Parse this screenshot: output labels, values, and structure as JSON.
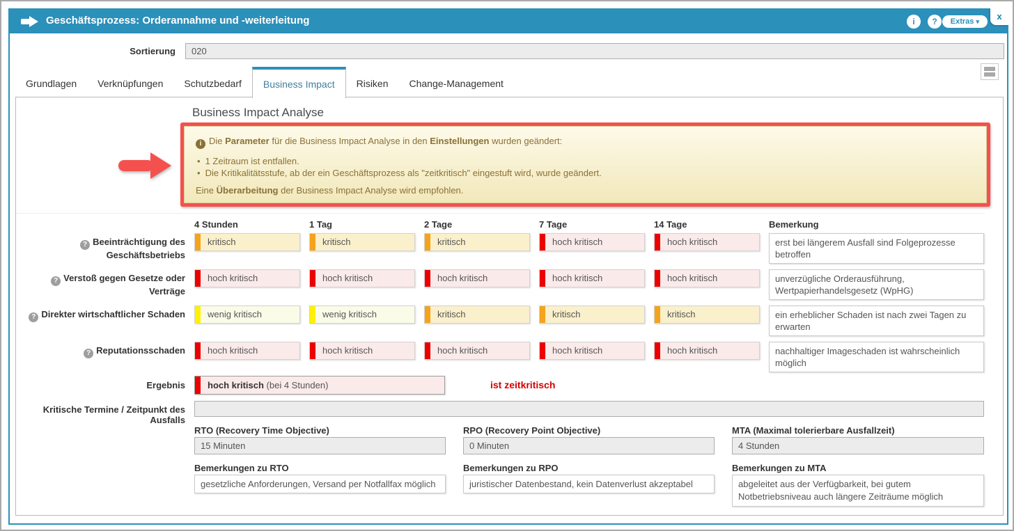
{
  "window": {
    "title": "Geschäftsprozess: Orderannahme und -weiterleitung",
    "info_icon": "i",
    "help_icon": "?",
    "extras_label": "Extras",
    "extras_caret": "▾",
    "close_icon": "x",
    "accent_color": "#2b90ba",
    "annotation_color": "#f4514e"
  },
  "toolbar": {
    "sortierung_label": "Sortierung",
    "sortierung_value": "020"
  },
  "tabs": [
    {
      "label": "Grundlagen"
    },
    {
      "label": "Verknüpfungen"
    },
    {
      "label": "Schutzbedarf"
    },
    {
      "label": "Business Impact"
    },
    {
      "label": "Risiken"
    },
    {
      "label": "Change-Management"
    }
  ],
  "section_title": "Business Impact Analyse",
  "notice": {
    "info_glyph": "i",
    "intro": {
      "p1": "Die ",
      "b1": "Parameter",
      "p2": " für die Business Impact Analyse in den ",
      "b2": "Einstellungen",
      "p3": " wurden geändert:"
    },
    "bullets": [
      "1 Zeitraum ist entfallen.",
      "Die Kritikalitätsstufe, ab der ein Geschäftsprozess als \"zeitkritisch\" eingestuft wird, wurde geändert."
    ],
    "recommendation": {
      "p1": "Eine ",
      "b1": "Überarbeitung",
      "p2": " der Business Impact Analyse wird empfohlen."
    }
  },
  "severity_colors": {
    "wenig_kritisch": {
      "bar": "#fff100",
      "bg": "#fbfce8"
    },
    "kritisch": {
      "bar": "#f5a31c",
      "bg": "#faf0cb"
    },
    "hoch_kritisch": {
      "bar": "#ec0000",
      "bg": "#fbeaea"
    }
  },
  "bia_table": {
    "columns": [
      "4 Stunden",
      "1 Tag",
      "2 Tage",
      "7 Tage",
      "14 Tage",
      "Bemerkung"
    ],
    "rows": [
      {
        "label": "Beeinträchtigung des Geschäftsbetriebs",
        "cells": [
          "kritisch",
          "kritisch",
          "kritisch",
          "hoch kritisch",
          "hoch kritisch"
        ],
        "remark": "erst bei längerem Ausfall sind Folgeprozesse betroffen"
      },
      {
        "label": "Verstoß gegen Gesetze oder Verträge",
        "cells": [
          "hoch kritisch",
          "hoch kritisch",
          "hoch kritisch",
          "hoch kritisch",
          "hoch kritisch"
        ],
        "remark": "unverzügliche Orderausführung, Wertpapierhandelsgesetz (WpHG)"
      },
      {
        "label": "Direkter wirtschaftlicher Schaden",
        "cells": [
          "wenig kritisch",
          "wenig kritisch",
          "kritisch",
          "kritisch",
          "kritisch"
        ],
        "remark": "ein erheblicher Schaden ist nach zwei Tagen zu erwarten"
      },
      {
        "label": "Reputationsschaden",
        "cells": [
          "hoch kritisch",
          "hoch kritisch",
          "hoch kritisch",
          "hoch kritisch",
          "hoch kritisch"
        ],
        "remark": "nachhaltiger Imageschaden ist wahrscheinlich möglich"
      }
    ]
  },
  "ergebnis": {
    "label": "Ergebnis",
    "level": "hoch kritisch",
    "value_bold": "hoch kritisch",
    "value_rest": " (bei 4 Stunden)",
    "flag": "ist zeitkritisch"
  },
  "fields": {
    "kritische_termine": {
      "label": "Kritische Termine / Zeitpunkt des Ausfalls",
      "value": ""
    },
    "rto": {
      "label": "RTO (Recovery Time Objective)",
      "value": "15 Minuten"
    },
    "rpo": {
      "label": "RPO (Recovery Point Objective)",
      "value": "0 Minuten"
    },
    "mta": {
      "label": "MTA (Maximal tolerierbare Ausfallzeit)",
      "value": "4 Stunden"
    },
    "rto_note": {
      "label": "Bemerkungen zu RTO",
      "value": "gesetzliche Anforderungen, Versand per Notfallfax möglich"
    },
    "rpo_note": {
      "label": "Bemerkungen zu RPO",
      "value": "juristischer Datenbestand, kein Datenverlust akzeptabel"
    },
    "mta_note": {
      "label": "Bemerkungen zu MTA",
      "value": "abgeleitet aus der Verfügbarkeit, bei gutem Notbetriebsniveau auch längere Zeiträume möglich"
    }
  }
}
